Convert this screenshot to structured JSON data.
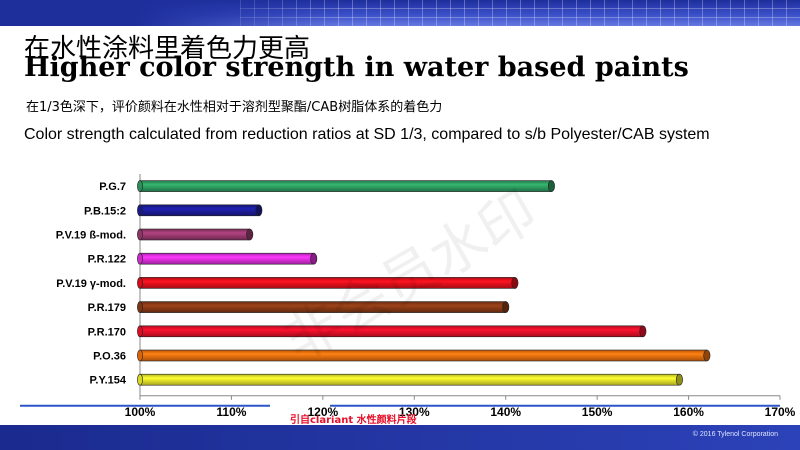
{
  "slide": {
    "title_cn": "在水性涂料里着色力更高",
    "title_en": "Higher color strength in water based paints",
    "subtitle_cn": "在1/3色深下，评价颜料在水性相对于溶剂型聚酯/CAB树脂体系的着色力",
    "subtitle_en": "Color strength calculated from reduction ratios at SD 1/3, compared to s/b Polyester/CAB system",
    "watermark": "非会员水印",
    "source_note": "引自clariant 水性颜料片段",
    "copyright": "© 2016 Tylenol Corporation"
  },
  "chart_data": {
    "type": "bar",
    "orientation": "horizontal",
    "categories": [
      "P.G.7",
      "P.B.15:2",
      "P.V.19 ß-mod.",
      "P.R.122",
      "P.V.19 γ-mod.",
      "P.R.179",
      "P.R.170",
      "P.O.36",
      "P.Y.154"
    ],
    "values": [
      145,
      113,
      112,
      119,
      141,
      140,
      155,
      162,
      159
    ],
    "colors": [
      "#2e9e62",
      "#1c1c9a",
      "#9c3a70",
      "#e22fe2",
      "#e8101c",
      "#8a3a16",
      "#f0102a",
      "#f07010",
      "#eeee2a"
    ],
    "xlim": [
      100,
      170
    ],
    "xticks": [
      "100%",
      "110%",
      "120%",
      "130%",
      "140%",
      "150%",
      "160%",
      "170%"
    ],
    "grid": false,
    "legend": "none"
  }
}
